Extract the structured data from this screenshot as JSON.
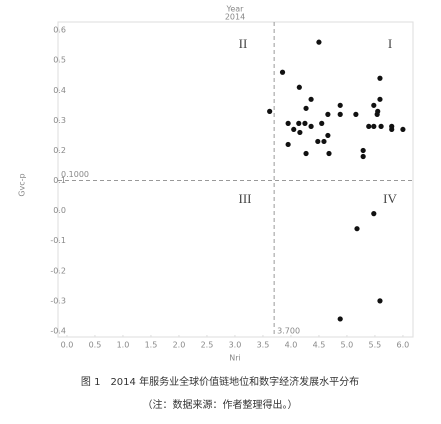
{
  "chart_data": {
    "type": "scatter",
    "header": "Year",
    "header_value": "2014",
    "x_label": "Nri",
    "y_label": "Gvc-p",
    "caption": "图 1　2014 年服务业全球价值链地位和数字经济发展水平分布",
    "note": "（注：数据来源：作者整理得出。）",
    "color": "#111111",
    "x": [
      3.62,
      3.85,
      3.95,
      3.95,
      4.05,
      4.16,
      4.14,
      4.15,
      4.25,
      4.27,
      4.27,
      4.36,
      4.36,
      4.5,
      4.48,
      4.59,
      4.55,
      4.66,
      4.66,
      4.68,
      4.88,
      4.88,
      5.16,
      5.29,
      5.29,
      5.39,
      5.48,
      5.48,
      5.54,
      5.59,
      5.59,
      5.55,
      5.61,
      5.8,
      5.8,
      6.0,
      5.18,
      5.48,
      5.59,
      4.88
    ],
    "values": [
      0.33,
      0.46,
      0.29,
      0.22,
      0.27,
      0.26,
      0.29,
      0.41,
      0.29,
      0.34,
      0.19,
      0.28,
      0.37,
      0.56,
      0.23,
      0.23,
      0.29,
      0.32,
      0.25,
      0.19,
      0.35,
      0.32,
      0.32,
      0.2,
      0.18,
      0.28,
      0.28,
      0.35,
      0.32,
      0.37,
      0.44,
      0.33,
      0.28,
      0.27,
      0.28,
      0.27,
      -0.06,
      -0.01,
      -0.3,
      -0.36
    ],
    "xlim": [
      -0.16,
      6.18
    ],
    "ylim": [
      -0.42,
      0.627
    ],
    "xticks": [
      {
        "value": 0,
        "label": "0.0"
      },
      0.5,
      {
        "value": 1,
        "label": "1.0"
      },
      1.5,
      {
        "value": 2,
        "label": "2.0"
      },
      2.5,
      {
        "value": 3,
        "label": "3.0"
      },
      3.5,
      {
        "value": 4,
        "label": "4.0"
      },
      4.5,
      {
        "value": 5,
        "label": "5.0"
      },
      5.5,
      {
        "value": 6,
        "label": "6.0"
      }
    ],
    "yticks": [
      0.6,
      0.5,
      0.4,
      0.3,
      0.2,
      0.1,
      {
        "value": 0,
        "label": "0.0"
      },
      -0.1,
      -0.2,
      -0.3,
      -0.4
    ],
    "reference_lines": [
      {
        "axis": "y",
        "value": 0.1,
        "label": "0.1000"
      },
      {
        "axis": "x",
        "value": 3.7,
        "label": "3.700"
      }
    ],
    "quadrants": [
      "II",
      "I",
      "III",
      "IV"
    ]
  }
}
